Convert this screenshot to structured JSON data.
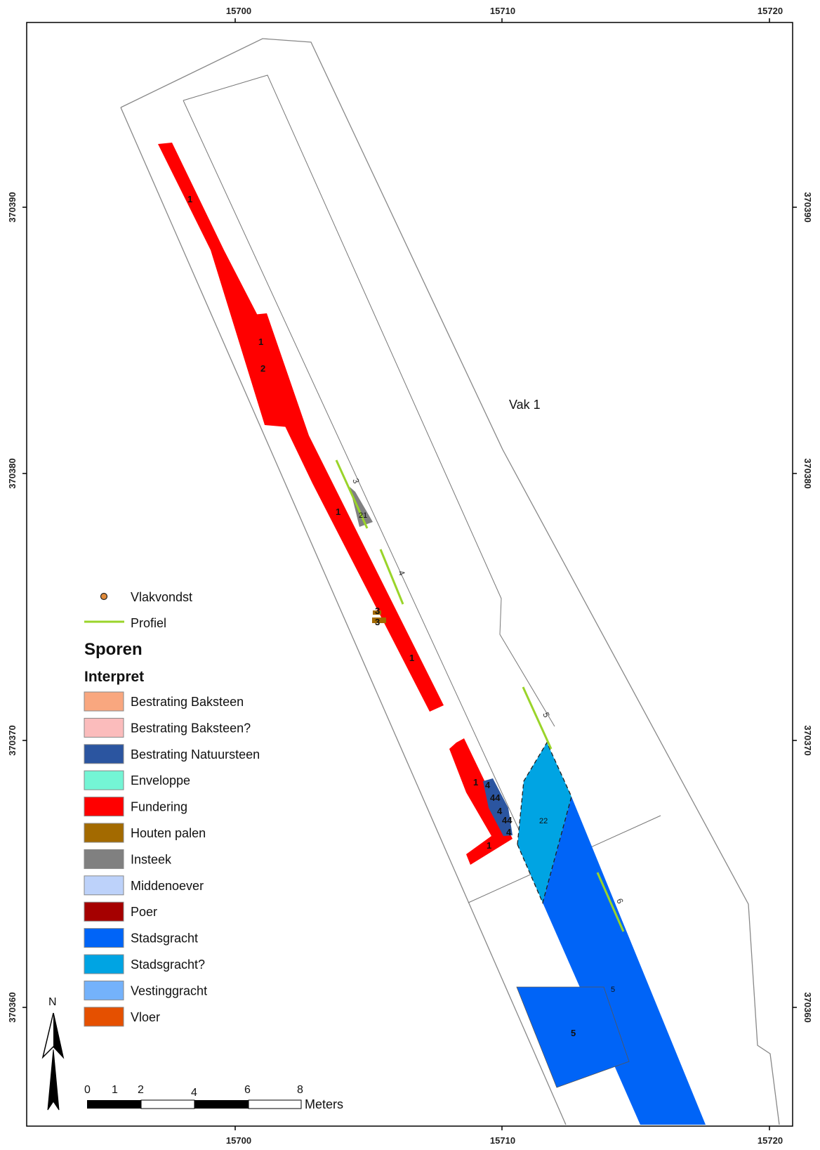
{
  "axes": {
    "x_ticks": [
      "15700",
      "15710",
      "15720"
    ],
    "y_ticks": [
      "370390",
      "370380",
      "370370",
      "370360"
    ]
  },
  "area_label": "Vak 1",
  "feature_labels": {
    "f1a": "1",
    "f1b": "1",
    "f2": "2",
    "f1c": "1",
    "f21": "21",
    "f3a": "3",
    "f3b": "3",
    "f1d": "1",
    "f1e": "1",
    "f4a": "4",
    "f44a": "44",
    "f4b": "4",
    "f44b": "44",
    "f4c": "4",
    "f1f": "1",
    "f22": "22",
    "f5a": "5",
    "f5b": "5"
  },
  "profile_labels": {
    "p3": "3",
    "p4": "4",
    "p5": "5",
    "p6": "6"
  },
  "legend": {
    "vlakvondst": "Vlakvondst",
    "profiel": "Profiel",
    "heading": "Sporen",
    "subheading": "Interpret",
    "items": [
      {
        "label": "Bestrating Baksteen",
        "color": "#f9a77f"
      },
      {
        "label": "Bestrating Baksteen?",
        "color": "#fbbcbc"
      },
      {
        "label": "Bestrating Natuursteen",
        "color": "#2b55a0"
      },
      {
        "label": "Enveloppe",
        "color": "#74f5d5"
      },
      {
        "label": "Fundering",
        "color": "#ff0000"
      },
      {
        "label": "Houten palen",
        "color": "#a36a00"
      },
      {
        "label": "Insteek",
        "color": "#808080"
      },
      {
        "label": "Middenoever",
        "color": "#bdd2fa"
      },
      {
        "label": "Poer",
        "color": "#a50000"
      },
      {
        "label": "Stadsgracht",
        "color": "#0064f7"
      },
      {
        "label": "Stadsgracht?",
        "color": "#00a4e3"
      },
      {
        "label": "Vestinggracht",
        "color": "#74b2fb"
      },
      {
        "label": "Vloer",
        "color": "#e55000"
      }
    ]
  },
  "north_label": "N",
  "scale": {
    "numbers": [
      "0",
      "1",
      "2",
      "4",
      "6",
      "8"
    ],
    "unit": "Meters"
  },
  "colors": {
    "fundering": "#ff0000",
    "stadsgracht": "#0064f7",
    "stadsgracht_q": "#00a4e3",
    "natuursteen": "#2b55a0",
    "insteek": "#808080",
    "houten_palen": "#a36a00",
    "profiel": "#9ad42a"
  }
}
